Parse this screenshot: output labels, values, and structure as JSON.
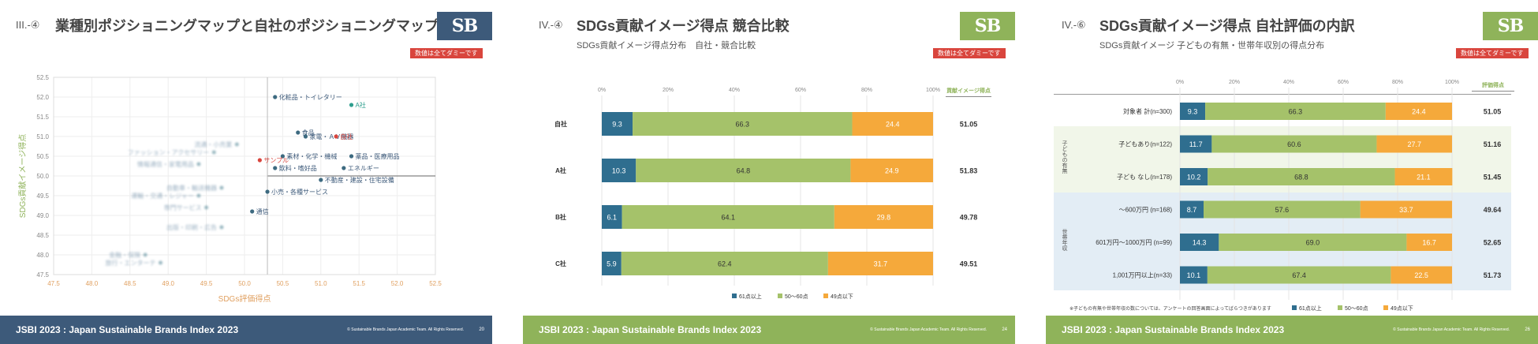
{
  "slides": [
    {
      "section": "III.-④",
      "title": "業種別ポジショニングマップと自社のポジショニングマップ",
      "badge": "数値は全てダミーです",
      "logo": "SB",
      "footer_title": "JSBI 2023 : Japan Sustainable Brands Index 2023",
      "copyright": "© Sustainable Brands Japan Academic Team. All Rights Reserved.",
      "page": "20",
      "colors": {
        "accent": "#3d5a7a",
        "own": "#d9453d",
        "competitor": "#2e9e8e",
        "axis_x": "#e0a060",
        "axis_y": "#8fb35a"
      }
    },
    {
      "section": "IV.-④",
      "title": "SDGs貢献イメージ得点 競合比較",
      "subtitle": "SDGs貢献イメージ得点分布　自社・競合比較",
      "badge": "数値は全てダミーです",
      "logo": "SB",
      "footer_title": "JSBI 2023 : Japan Sustainable Brands Index 2023",
      "copyright": "© Sustainable Brands Japan Academic Team. All Rights Reserved.",
      "page": "24",
      "score_header": "貢献イメージ得点",
      "colors": {
        "accent": "#8fb35a",
        "s61": "#2f6e8f",
        "s50": "#a5c26a",
        "s49": "#f5a93b"
      }
    },
    {
      "section": "IV.-⑥",
      "title": "SDGs貢献イメージ得点 自社評価の内訳",
      "subtitle": "SDGs貢献イメージ 子どもの有無・世帯年収別の得点分布",
      "badge": "数値は全てダミーです",
      "logo": "SB",
      "footer_title": "JSBI 2023 : Japan Sustainable Brands Index 2023",
      "copyright": "© Sustainable Brands Japan Academic Team. All Rights Reserved.",
      "page": "26",
      "score_header": "評価得点",
      "group1": "子どもの有無",
      "group2": "世帯年収",
      "note": "※子どもの有無や世帯年収の数については、アンケートの回答画面によってばらつきがあります",
      "colors": {
        "accent": "#8fb35a",
        "s61": "#2f6e8f",
        "s50": "#a5c26a",
        "s49": "#f5a93b",
        "group1_bg": "#f1f6e9",
        "group2_bg": "#e3edf5"
      }
    }
  ],
  "chart_data": [
    {
      "type": "scatter",
      "xlabel": "SDGs評価得点",
      "ylabel": "SDGs貢献イメージ得点",
      "xlim": [
        47.5,
        52.5
      ],
      "ylim": [
        47.5,
        52.5
      ],
      "xticks": [
        "47.5",
        "48.0",
        "48.5",
        "49.0",
        "49.5",
        "50.0",
        "50.5",
        "51.0",
        "51.5",
        "52.0",
        "52.5"
      ],
      "yticks": [
        "52.5",
        "52.0",
        "51.5",
        "51.0",
        "50.5",
        "50.0",
        "49.5",
        "49.0",
        "48.5",
        "48.0",
        "47.5"
      ],
      "highlight_points": [
        {
          "label": "化粧品・トイレタリー",
          "x": 50.4,
          "y": 52.0,
          "kind": "industry"
        },
        {
          "label": "A社",
          "x": 51.4,
          "y": 51.8,
          "kind": "competitor"
        },
        {
          "label": "食品",
          "x": 50.7,
          "y": 51.1,
          "kind": "industry"
        },
        {
          "label": "家電・ＡＶ機器",
          "x": 50.8,
          "y": 51.0,
          "kind": "industry"
        },
        {
          "label": "自社",
          "x": 51.2,
          "y": 51.0,
          "kind": "own"
        },
        {
          "label": "素材・化学・機械",
          "x": 50.5,
          "y": 50.5,
          "kind": "industry"
        },
        {
          "label": "薬品・医療用品",
          "x": 51.4,
          "y": 50.5,
          "kind": "industry"
        },
        {
          "label": "サンプル",
          "x": 50.2,
          "y": 50.4,
          "kind": "own"
        },
        {
          "label": "エネルギー",
          "x": 51.3,
          "y": 50.2,
          "kind": "industry"
        },
        {
          "label": "飲料・嗜好品",
          "x": 50.4,
          "y": 50.2,
          "kind": "industry"
        },
        {
          "label": "不動産・建設・住宅設備",
          "x": 51.0,
          "y": 49.9,
          "kind": "industry"
        },
        {
          "label": "小売・各種サービス",
          "x": 50.3,
          "y": 49.6,
          "kind": "industry"
        },
        {
          "label": "通信",
          "x": 50.1,
          "y": 49.1,
          "kind": "industry"
        }
      ],
      "blurred_points": [
        {
          "label": "流通・小売業",
          "x": 49.9,
          "y": 50.8
        },
        {
          "label": "ファッション・アクセサリー",
          "x": 49.6,
          "y": 50.6
        },
        {
          "label": "情報通信・家電用品",
          "x": 49.4,
          "y": 50.3
        },
        {
          "label": "自動車・輸送機器",
          "x": 49.7,
          "y": 49.7
        },
        {
          "label": "運輸・交通・レジャー",
          "x": 49.4,
          "y": 49.5
        },
        {
          "label": "専門サービス",
          "x": 49.5,
          "y": 49.2
        },
        {
          "label": "出版・印刷・広告",
          "x": 49.7,
          "y": 48.7
        },
        {
          "label": "金融・保険",
          "x": 48.7,
          "y": 48.0
        },
        {
          "label": "旅行・エンターテ",
          "x": 48.9,
          "y": 47.8
        }
      ]
    },
    {
      "type": "bar",
      "stacked": true,
      "orientation": "horizontal",
      "axis_ticks": [
        "0%",
        "20%",
        "40%",
        "60%",
        "80%",
        "100%"
      ],
      "categories": [
        "自社",
        "A社",
        "B社",
        "C社"
      ],
      "series": [
        {
          "name": "61点以上",
          "values": [
            9.3,
            10.3,
            6.1,
            5.9
          ]
        },
        {
          "name": "50〜60点",
          "values": [
            66.3,
            64.8,
            64.1,
            62.4
          ]
        },
        {
          "name": "49点以下",
          "values": [
            24.4,
            24.9,
            29.8,
            31.7
          ]
        }
      ],
      "scores": [
        "51.05",
        "51.83",
        "49.78",
        "49.51"
      ]
    },
    {
      "type": "bar",
      "stacked": true,
      "orientation": "horizontal",
      "axis_ticks": [
        "0%",
        "20%",
        "40%",
        "60%",
        "80%",
        "100%"
      ],
      "categories": [
        "対象者 計(n=300)",
        "子どもあり(n=122)",
        "子ども なし(n=178)",
        "〜600万円 (n=168)",
        "601万円〜1000万円 (n=99)",
        "1,001万円以上(n=33)"
      ],
      "series": [
        {
          "name": "61点以上",
          "values": [
            9.3,
            11.7,
            10.2,
            8.7,
            14.3,
            10.1
          ]
        },
        {
          "name": "50〜60点",
          "values": [
            66.3,
            60.6,
            68.8,
            57.6,
            69.0,
            67.4
          ]
        },
        {
          "name": "49点以下",
          "values": [
            24.4,
            27.7,
            21.1,
            33.7,
            16.7,
            22.5
          ]
        }
      ],
      "scores": [
        "51.05",
        "51.16",
        "51.45",
        "49.64",
        "52.65",
        "51.73"
      ]
    }
  ]
}
